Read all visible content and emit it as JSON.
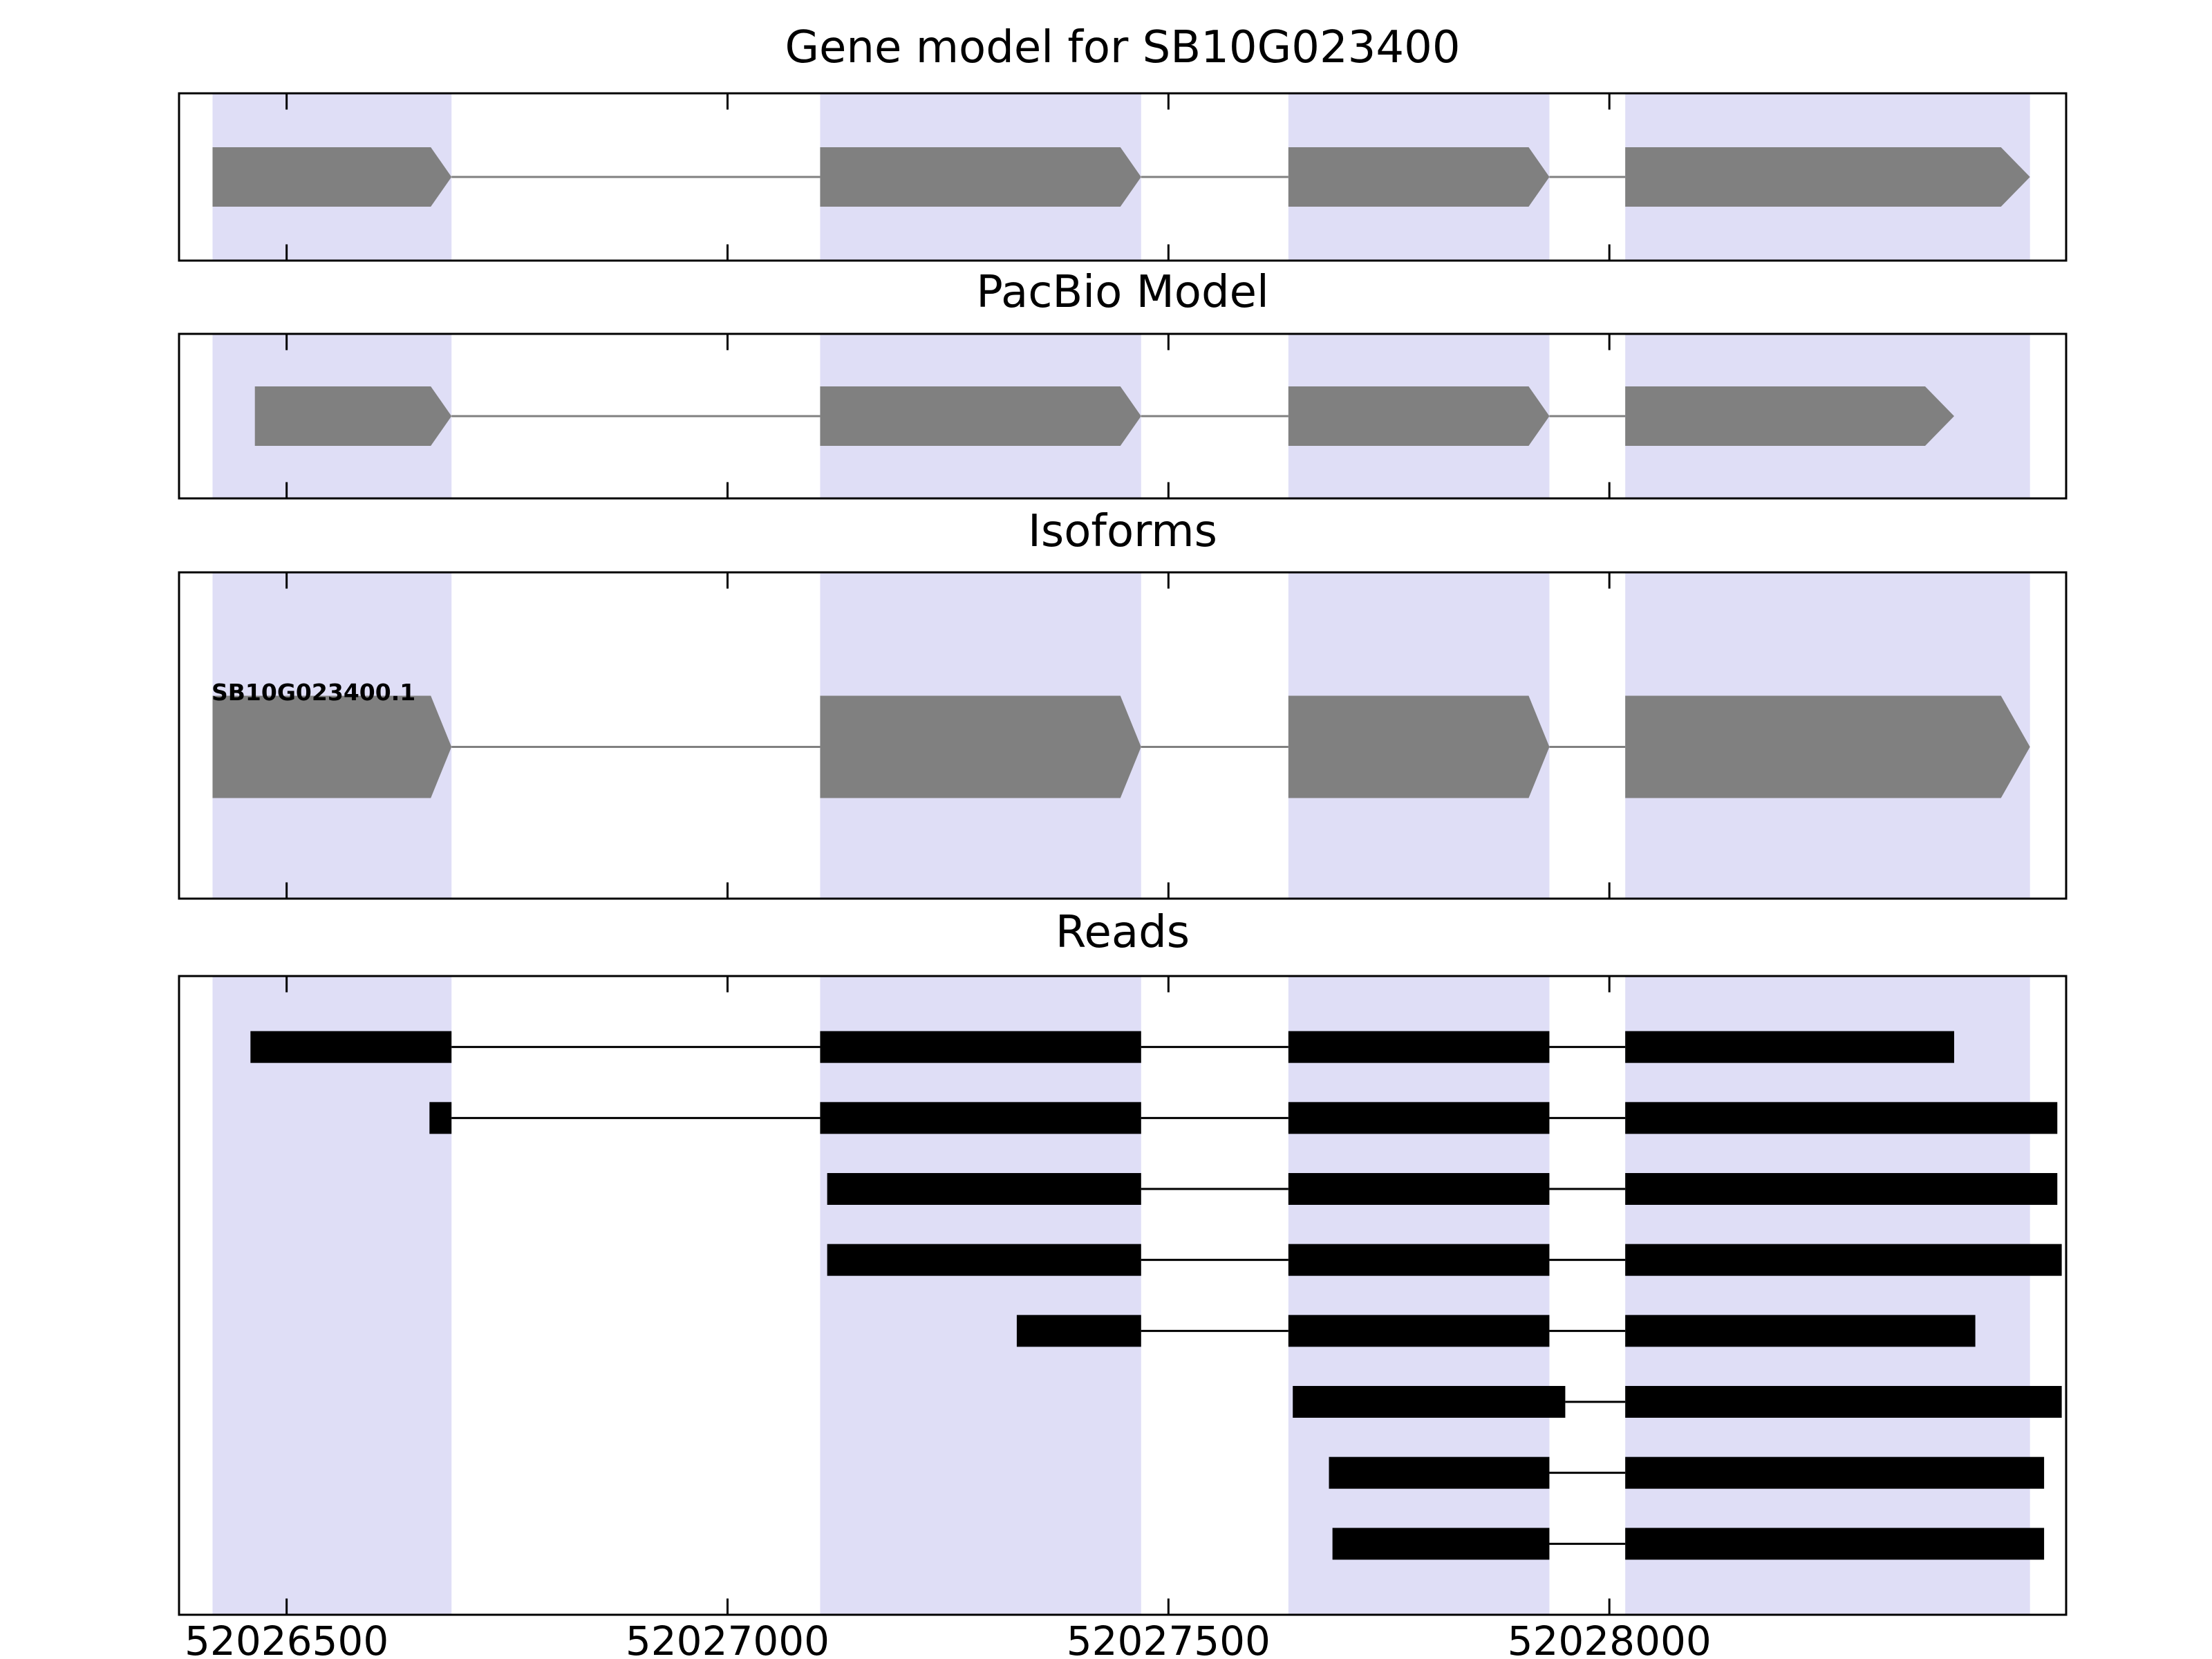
{
  "chart_data": {
    "type": "table",
    "plot_kind": "gene-model-tracks",
    "x_axis": {
      "min": 52026378,
      "max": 52028518,
      "ticks": [
        52026500,
        52027000,
        52027500,
        52028000
      ],
      "tick_labels": [
        "52026500",
        "52027000",
        "52027500",
        "52028000"
      ]
    },
    "colors": {
      "highlight_band": "#dfdef6",
      "exon_fill": "#808080",
      "intron_line": "#808080",
      "read_fill": "#000000",
      "read_connector": "#000000",
      "panel_border": "#000000",
      "background": "#ffffff"
    },
    "highlight_bands": [
      [
        52026416,
        52026687
      ],
      [
        52027105,
        52027469
      ],
      [
        52027636,
        52027932
      ],
      [
        52028018,
        52028477
      ]
    ],
    "panels": [
      {
        "title": "Gene model for SB10G023400",
        "type": "model",
        "strand": "+",
        "exons": [
          [
            52026416,
            52026687
          ],
          [
            52027105,
            52027469
          ],
          [
            52027636,
            52027932
          ],
          [
            52028018,
            52028477
          ]
        ]
      },
      {
        "title": "PacBio Model",
        "type": "model",
        "strand": "+",
        "exons": [
          [
            52026464,
            52026687
          ],
          [
            52027105,
            52027469
          ],
          [
            52027636,
            52027932
          ],
          [
            52028018,
            52028391
          ]
        ]
      },
      {
        "title": "Isoforms",
        "type": "isoform",
        "label": "SB10G023400.1",
        "strand": "+",
        "exons": [
          [
            52026416,
            52026687
          ],
          [
            52027105,
            52027469
          ],
          [
            52027636,
            52027932
          ],
          [
            52028018,
            52028477
          ]
        ]
      },
      {
        "title": "Reads",
        "type": "reads",
        "reads": [
          [
            [
              52026459,
              52026687
            ],
            [
              52027105,
              52027469
            ],
            [
              52027636,
              52027932
            ],
            [
              52028018,
              52028391
            ]
          ],
          [
            [
              52026662,
              52026687
            ],
            [
              52027105,
              52027469
            ],
            [
              52027636,
              52027932
            ],
            [
              52028018,
              52028508
            ]
          ],
          [
            [
              52027113,
              52027469
            ],
            [
              52027636,
              52027932
            ],
            [
              52028018,
              52028508
            ]
          ],
          [
            [
              52027113,
              52027469
            ],
            [
              52027636,
              52027932
            ],
            [
              52028018,
              52028513
            ]
          ],
          [
            [
              52027328,
              52027469
            ],
            [
              52027636,
              52027932
            ],
            [
              52028018,
              52028415
            ]
          ],
          [
            [
              52027641,
              52027950
            ],
            [
              52028018,
              52028513
            ]
          ],
          [
            [
              52027682,
              52027932
            ],
            [
              52028018,
              52028493
            ]
          ],
          [
            [
              52027686,
              52027932
            ],
            [
              52028018,
              52028493
            ]
          ]
        ]
      }
    ]
  }
}
